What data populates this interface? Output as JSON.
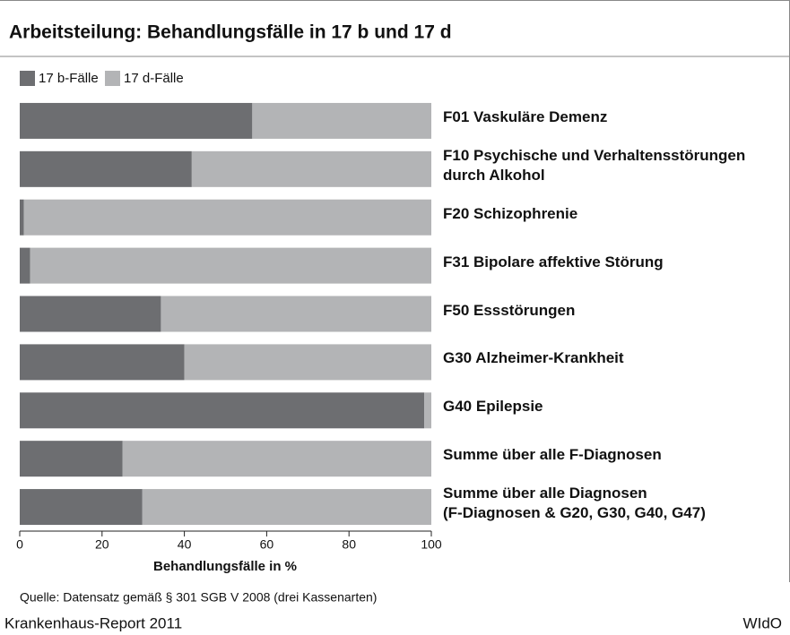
{
  "chart_data": {
    "type": "stacked-bar-horizontal",
    "title": "Arbeitsteilung: Behandlungsfälle in 17 b und 17 d",
    "categories": [
      "F01 Vaskuläre Demenz",
      "F10 Psychische und Verhaltensstörungen\ndurch Alkohol",
      "F20 Schizophrenie",
      "F31 Bipolare affektive Störung",
      "F50 Essstörungen",
      "G30 Alzheimer-Krankheit",
      "G40 Epilepsie",
      "Summe über alle F-Diagnosen",
      "Summe über alle Diagnosen\n(F-Diagnosen & G20, G30, G40, G47)"
    ],
    "series": [
      {
        "name": "17 b-Fälle",
        "color": "#6d6e71",
        "values": [
          56.5,
          41.8,
          1,
          2.5,
          34.3,
          40,
          98.3,
          25,
          29.8
        ]
      },
      {
        "name": "17 d-Fälle",
        "color": "#b3b4b6",
        "values": [
          43.5,
          58.2,
          99,
          97.5,
          65.7,
          60,
          1.7,
          75,
          70.2
        ]
      }
    ],
    "xlim": [
      0,
      100
    ],
    "xticks": [
      0,
      20,
      40,
      60,
      80,
      100
    ],
    "xlabel": "Behandlungsfälle in %",
    "source": "Quelle: Datensatz gemäß § 301 SGB V 2008 (drei Kassenarten)",
    "footer_left": "Krankenhaus-Report 2011",
    "footer_right": "WIdO"
  }
}
